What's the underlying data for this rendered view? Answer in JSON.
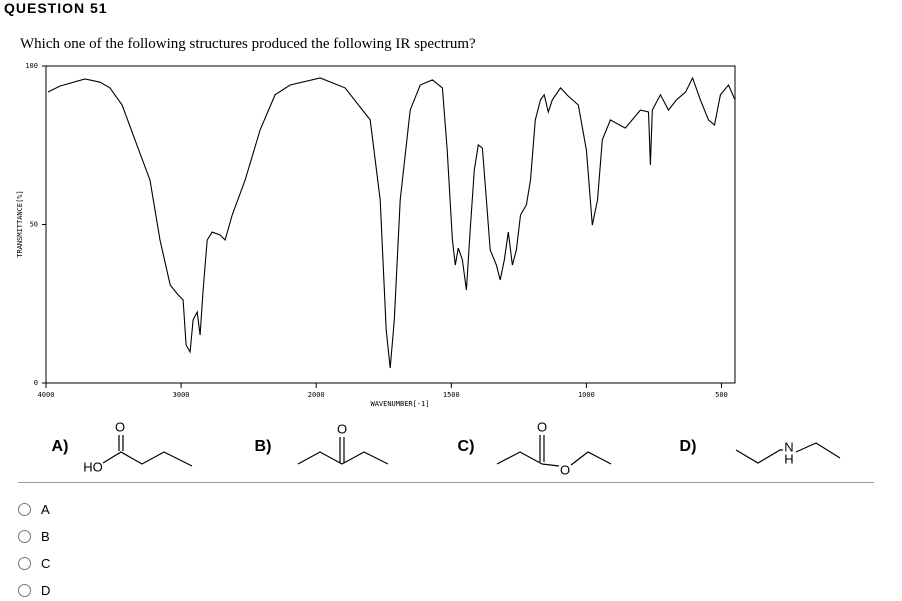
{
  "header": {
    "title": "QUESTION 51"
  },
  "question": "Which one of the following structures produced the following IR spectrum?",
  "chart_data": {
    "type": "line",
    "x_label": "WAVENUMBER[-1]",
    "y_label": "TRANSMITTANCE[%]",
    "xlim": [
      4000,
      450
    ],
    "x_scale_change": 2000,
    "xticks": [
      4000,
      3000,
      2000,
      1500,
      1000,
      500
    ],
    "ylim": [
      0,
      100
    ],
    "yticks": [
      0,
      50,
      100
    ],
    "color": "#000000",
    "x": [
      3985,
      3896,
      3711,
      3600,
      3526,
      3437,
      3341,
      3230,
      3156,
      3081,
      3022,
      2985,
      2963,
      2933,
      2911,
      2881,
      2859,
      2837,
      2807,
      2770,
      2711,
      2674,
      2622,
      2526,
      2415,
      2304,
      2193,
      1985,
      1893,
      1800,
      1763,
      1741,
      1726,
      1711,
      1689,
      1652,
      1615,
      1570,
      1533,
      1515,
      1496,
      1485,
      1474,
      1459,
      1444,
      1430,
      1415,
      1400,
      1385,
      1370,
      1356,
      1333,
      1319,
      1304,
      1289,
      1274,
      1259,
      1244,
      1222,
      1207,
      1189,
      1170,
      1156,
      1141,
      1126,
      1096,
      1067,
      1030,
      1000,
      978,
      959,
      941,
      911,
      856,
      800,
      770,
      763,
      756,
      726,
      696,
      667,
      633,
      607,
      578,
      548,
      526,
      504,
      474,
      450
    ],
    "values": [
      91.8,
      93.7,
      95.9,
      94.9,
      93.1,
      87.7,
      76.7,
      64.0,
      45.1,
      30.9,
      27.8,
      26.2,
      12.0,
      9.8,
      19.9,
      22.4,
      15.1,
      29.3,
      45.1,
      47.6,
      46.7,
      45.1,
      53.0,
      64.0,
      79.8,
      90.9,
      94.0,
      96.2,
      93.1,
      83.0,
      57.7,
      16.7,
      4.7,
      19.9,
      57.7,
      86.1,
      94.0,
      95.6,
      93.1,
      73.5,
      45.1,
      37.2,
      42.6,
      38.8,
      29.3,
      48.3,
      67.2,
      75.1,
      74.1,
      57.7,
      42.0,
      37.2,
      32.5,
      38.8,
      47.6,
      37.2,
      42.0,
      53.0,
      56.2,
      64.0,
      83.0,
      89.3,
      90.9,
      85.5,
      89.3,
      93.1,
      90.5,
      87.7,
      73.5,
      49.8,
      57.7,
      76.7,
      83.0,
      80.4,
      86.1,
      85.5,
      68.8,
      86.1,
      90.9,
      86.1,
      89.3,
      91.8,
      96.2,
      89.3,
      83.0,
      81.4,
      90.9,
      94.0,
      89.3
    ]
  },
  "structures": [
    {
      "label": "A)",
      "atoms": [
        "O",
        "HO"
      ]
    },
    {
      "label": "B)",
      "atoms": [
        "O"
      ]
    },
    {
      "label": "C)",
      "atoms": [
        "O",
        "O"
      ]
    },
    {
      "label": "D)",
      "atoms": [
        "N",
        "H"
      ]
    }
  ],
  "options": [
    "A",
    "B",
    "C",
    "D"
  ]
}
